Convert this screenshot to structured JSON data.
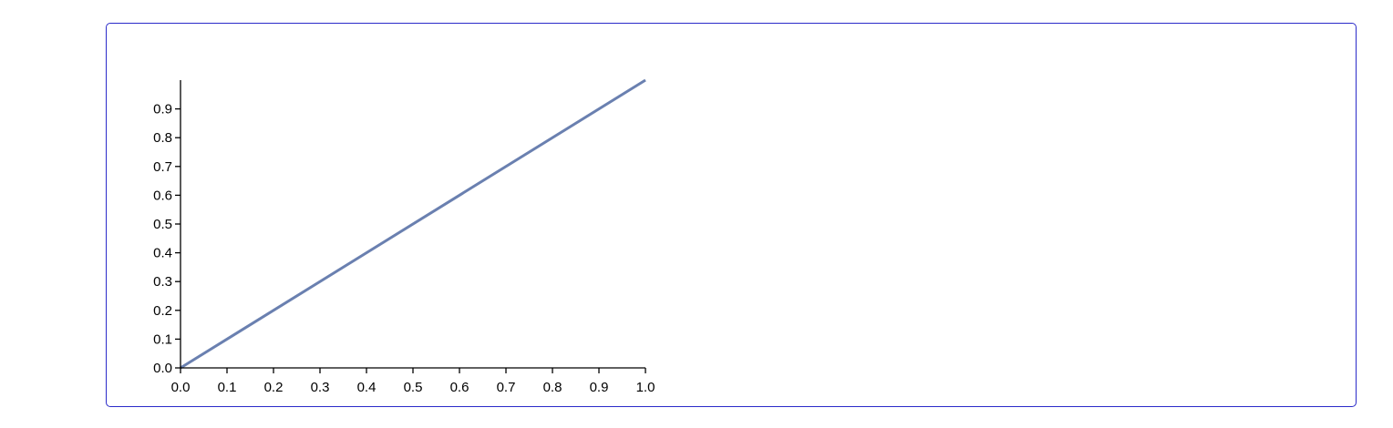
{
  "chart_data": {
    "type": "line",
    "title": "",
    "xlabel": "",
    "ylabel": "",
    "xlim": [
      0.0,
      1.0
    ],
    "ylim": [
      0.0,
      1.0
    ],
    "x_ticks": [
      "0.0",
      "0.1",
      "0.2",
      "0.3",
      "0.4",
      "0.5",
      "0.6",
      "0.7",
      "0.8",
      "0.9",
      "1.0"
    ],
    "y_ticks": [
      "0.0",
      "0.1",
      "0.2",
      "0.3",
      "0.4",
      "0.5",
      "0.6",
      "0.7",
      "0.8",
      "0.9"
    ],
    "grid": false,
    "series": [
      {
        "color": "#6a80b0",
        "x": [
          0.0,
          1.0
        ],
        "y": [
          0.0,
          1.0
        ]
      }
    ]
  }
}
